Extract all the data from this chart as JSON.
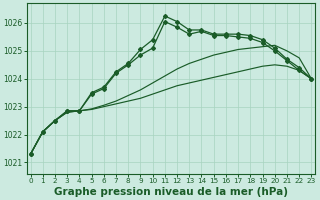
{
  "bg_color": "#cceae0",
  "line_color": "#1a5c28",
  "grid_color": "#a8d4c0",
  "xlabel": "Graphe pression niveau de la mer (hPa)",
  "xlabel_fontsize": 7.5,
  "ylim": [
    1020.6,
    1026.7
  ],
  "xlim": [
    -0.3,
    23.3
  ],
  "yticks": [
    1021,
    1022,
    1023,
    1024,
    1025,
    1026
  ],
  "xticks": [
    0,
    1,
    2,
    3,
    4,
    5,
    6,
    7,
    8,
    9,
    10,
    11,
    12,
    13,
    14,
    15,
    16,
    17,
    18,
    19,
    20,
    21,
    22,
    23
  ],
  "line_slow1": [
    1021.3,
    1022.1,
    1022.5,
    1022.8,
    1022.85,
    1022.9,
    1023.0,
    1023.1,
    1023.2,
    1023.3,
    1023.45,
    1023.6,
    1023.75,
    1023.85,
    1023.95,
    1024.05,
    1024.15,
    1024.25,
    1024.35,
    1024.45,
    1024.5,
    1024.45,
    1024.3,
    1024.0
  ],
  "line_slow2": [
    1021.3,
    1022.1,
    1022.5,
    1022.8,
    1022.85,
    1022.92,
    1023.05,
    1023.2,
    1023.4,
    1023.6,
    1023.85,
    1024.1,
    1024.35,
    1024.55,
    1024.7,
    1024.85,
    1024.95,
    1025.05,
    1025.1,
    1025.15,
    1025.2,
    1025.0,
    1024.75,
    1024.0
  ],
  "line_fast1": [
    1021.3,
    1022.1,
    1022.5,
    1022.85,
    1022.85,
    1023.45,
    1023.65,
    1024.2,
    1024.5,
    1024.85,
    1025.1,
    1026.05,
    1025.85,
    1025.6,
    1025.7,
    1025.55,
    1025.55,
    1025.5,
    1025.45,
    1025.3,
    1025.0,
    1024.65,
    1024.3,
    1024.0
  ],
  "line_fast2": [
    1021.3,
    1022.1,
    1022.5,
    1022.85,
    1022.85,
    1023.5,
    1023.7,
    1024.25,
    1024.55,
    1025.05,
    1025.4,
    1026.25,
    1026.05,
    1025.75,
    1025.75,
    1025.6,
    1025.6,
    1025.6,
    1025.55,
    1025.4,
    1025.1,
    1024.7,
    1024.4,
    1024.0
  ]
}
